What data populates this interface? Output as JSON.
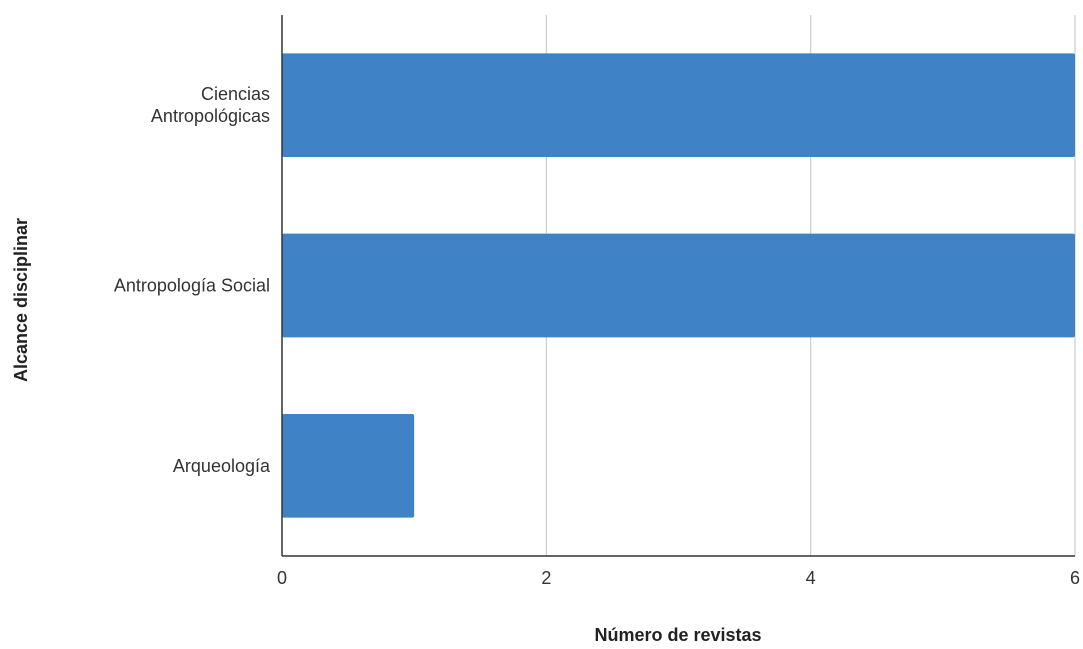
{
  "chart_data": {
    "type": "bar",
    "orientation": "horizontal",
    "title": "",
    "xlabel": "Número de revistas",
    "ylabel": "Alcance disciplinar",
    "categories": [
      [
        "Ciencias",
        "Antropológicas"
      ],
      [
        "Antropología Social"
      ],
      [
        "Arqueología"
      ]
    ],
    "values": [
      6,
      6,
      1
    ],
    "xlim": [
      0,
      6
    ],
    "xticks": [
      0,
      2,
      4,
      6
    ],
    "grid": "vertical",
    "legend": "none",
    "bar_color": "#3f83c6",
    "grid_color": "#cccccc",
    "axis_color": "#333333"
  }
}
